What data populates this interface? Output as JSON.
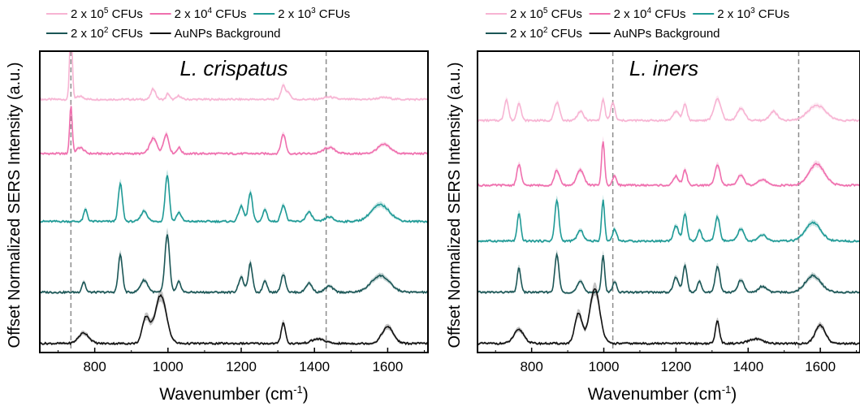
{
  "colors": {
    "s1e5": "#f7b4d3",
    "s1e4": "#ef6fae",
    "s1e3": "#1f9a96",
    "s1e2": "#1b5656",
    "bg": "#111111",
    "ref": "#8c8c8c"
  },
  "chart_data": [
    {
      "type": "line",
      "panel": "left",
      "title": "L. crispatus",
      "xlabel": "Wavenumber (cm⁻¹)",
      "ylabel": "Offset Normalized SERS Intensity (a.u.)",
      "xlim": [
        650,
        1710
      ],
      "ylim": [
        0,
        1
      ],
      "xticks": [
        800,
        1000,
        1200,
        1400,
        1600
      ],
      "reference_lines": [
        735,
        1432
      ],
      "legend": {
        "placement": "top",
        "entries": [
          "2 x 10⁵ CFUs",
          "2 x 10⁴ CFUs",
          "2 x 10³ CFUs",
          "2 x 10² CFUs",
          "AuNPs Background"
        ]
      },
      "series": [
        {
          "name": "2 x 10⁵ CFUs",
          "color_key": "s1e5",
          "offset": 0.84,
          "peaks": [
            [
              735,
              0.255,
              5
            ],
            [
              760,
              0.01,
              14
            ],
            [
              960,
              0.035,
              9
            ],
            [
              1000,
              0.02,
              6
            ],
            [
              1030,
              0.012,
              8
            ],
            [
              1315,
              0.045,
              9
            ],
            [
              1330,
              0.02,
              8
            ],
            [
              1440,
              0.008,
              20
            ],
            [
              1590,
              0.006,
              25
            ]
          ]
        },
        {
          "name": "2 x 10⁴ CFUs",
          "color_key": "s1e4",
          "offset": 0.66,
          "peaks": [
            [
              735,
              0.16,
              5
            ],
            [
              760,
              0.02,
              14
            ],
            [
              960,
              0.05,
              14
            ],
            [
              995,
              0.065,
              10
            ],
            [
              1030,
              0.02,
              8
            ],
            [
              1315,
              0.065,
              9
            ],
            [
              1440,
              0.02,
              22
            ],
            [
              1590,
              0.03,
              25
            ]
          ]
        },
        {
          "name": "2 x 10³ CFUs",
          "color_key": "s1e3",
          "offset": 0.435,
          "peaks": [
            [
              775,
              0.04,
              7
            ],
            [
              870,
              0.125,
              8
            ],
            [
              935,
              0.035,
              12
            ],
            [
              998,
              0.155,
              8
            ],
            [
              1030,
              0.03,
              9
            ],
            [
              1200,
              0.05,
              10
            ],
            [
              1225,
              0.095,
              8
            ],
            [
              1265,
              0.04,
              8
            ],
            [
              1315,
              0.055,
              9
            ],
            [
              1385,
              0.03,
              12
            ],
            [
              1440,
              0.015,
              15
            ],
            [
              1580,
              0.055,
              35
            ]
          ]
        },
        {
          "name": "2 x 10² CFUs",
          "color_key": "s1e2",
          "offset": 0.2,
          "peaks": [
            [
              770,
              0.035,
              7
            ],
            [
              870,
              0.125,
              8
            ],
            [
              935,
              0.04,
              14
            ],
            [
              998,
              0.19,
              9
            ],
            [
              1030,
              0.035,
              8
            ],
            [
              1200,
              0.05,
              10
            ],
            [
              1225,
              0.095,
              8
            ],
            [
              1265,
              0.04,
              8
            ],
            [
              1315,
              0.06,
              9
            ],
            [
              1385,
              0.03,
              12
            ],
            [
              1440,
              0.02,
              15
            ],
            [
              1580,
              0.055,
              35
            ]
          ]
        },
        {
          "name": "AuNPs Background",
          "color_key": "bg",
          "offset": 0.03,
          "peaks": [
            [
              770,
              0.035,
              20
            ],
            [
              940,
              0.085,
              14
            ],
            [
              980,
              0.16,
              22
            ],
            [
              1315,
              0.07,
              8
            ],
            [
              1410,
              0.015,
              25
            ],
            [
              1600,
              0.055,
              22
            ]
          ]
        }
      ]
    },
    {
      "type": "line",
      "panel": "right",
      "title": "L. iners",
      "xlabel": "Wavenumber (cm⁻¹)",
      "ylabel": "Offset Normalized SERS Intensity (a.u.)",
      "xlim": [
        650,
        1710
      ],
      "ylim": [
        0,
        1
      ],
      "xticks": [
        800,
        1000,
        1200,
        1400,
        1600
      ],
      "reference_lines": [
        1025,
        1540
      ],
      "legend": {
        "placement": "top",
        "entries": [
          "2 x 10⁵ CFUs",
          "2 x 10⁴ CFUs",
          "2 x 10³ CFUs",
          "2 x 10² CFUs",
          "AuNPs Background"
        ]
      },
      "series": [
        {
          "name": "2 x 10⁵ CFUs",
          "color_key": "s1e5",
          "offset": 0.77,
          "peaks": [
            [
              730,
              0.07,
              8
            ],
            [
              765,
              0.06,
              8
            ],
            [
              870,
              0.06,
              10
            ],
            [
              935,
              0.03,
              12
            ],
            [
              998,
              0.07,
              7
            ],
            [
              1025,
              0.06,
              8
            ],
            [
              1200,
              0.03,
              12
            ],
            [
              1225,
              0.055,
              8
            ],
            [
              1315,
              0.07,
              14
            ],
            [
              1380,
              0.04,
              15
            ],
            [
              1470,
              0.03,
              15
            ],
            [
              1590,
              0.05,
              35
            ]
          ]
        },
        {
          "name": "2 x 10⁴ CFUs",
          "color_key": "s1e4",
          "offset": 0.555,
          "peaks": [
            [
              765,
              0.07,
              8
            ],
            [
              870,
              0.05,
              10
            ],
            [
              935,
              0.05,
              14
            ],
            [
              998,
              0.145,
              6
            ],
            [
              1030,
              0.03,
              8
            ],
            [
              1200,
              0.03,
              10
            ],
            [
              1225,
              0.05,
              8
            ],
            [
              1315,
              0.07,
              10
            ],
            [
              1380,
              0.035,
              12
            ],
            [
              1440,
              0.02,
              15
            ],
            [
              1590,
              0.07,
              30
            ]
          ]
        },
        {
          "name": "2 x 10³ CFUs",
          "color_key": "s1e3",
          "offset": 0.37,
          "peaks": [
            [
              765,
              0.09,
              7
            ],
            [
              870,
              0.135,
              8
            ],
            [
              935,
              0.035,
              12
            ],
            [
              998,
              0.135,
              6
            ],
            [
              1030,
              0.04,
              8
            ],
            [
              1200,
              0.05,
              10
            ],
            [
              1225,
              0.09,
              8
            ],
            [
              1265,
              0.035,
              8
            ],
            [
              1315,
              0.08,
              9
            ],
            [
              1380,
              0.04,
              12
            ],
            [
              1440,
              0.02,
              15
            ],
            [
              1580,
              0.06,
              30
            ]
          ]
        },
        {
          "name": "2 x 10² CFUs",
          "color_key": "s1e2",
          "offset": 0.2,
          "peaks": [
            [
              765,
              0.08,
              7
            ],
            [
              870,
              0.125,
              8
            ],
            [
              935,
              0.035,
              12
            ],
            [
              998,
              0.125,
              6
            ],
            [
              1030,
              0.035,
              8
            ],
            [
              1200,
              0.05,
              10
            ],
            [
              1225,
              0.09,
              8
            ],
            [
              1265,
              0.035,
              8
            ],
            [
              1315,
              0.085,
              9
            ],
            [
              1380,
              0.04,
              12
            ],
            [
              1440,
              0.02,
              15
            ],
            [
              1580,
              0.055,
              30
            ]
          ]
        },
        {
          "name": "AuNPs Background",
          "color_key": "bg",
          "offset": 0.03,
          "peaks": [
            [
              765,
              0.045,
              20
            ],
            [
              930,
              0.1,
              14
            ],
            [
              975,
              0.18,
              20
            ],
            [
              1315,
              0.075,
              8
            ],
            [
              1420,
              0.015,
              25
            ],
            [
              1600,
              0.06,
              20
            ]
          ]
        }
      ]
    }
  ],
  "legend_text": {
    "left_row1": [
      {
        "pre": "2 x 10",
        "sup": "5",
        "post": " CFUs"
      },
      {
        "pre": "2 x 10",
        "sup": "4",
        "post": " CFUs"
      },
      {
        "pre": "2 x 10",
        "sup": "3",
        "post": " CFUs"
      }
    ],
    "left_row2": [
      {
        "pre": "2 x 10",
        "sup": "2",
        "post": " CFUs"
      },
      {
        "pre": "AuNPs Background",
        "sup": "",
        "post": ""
      }
    ]
  },
  "axis_text": {
    "ylabel": "Offset Normalized SERS Intensity (a.u.)",
    "xlabel_pre": "Wavenumber (cm",
    "xlabel_sup": "-1",
    "xlabel_post": ")"
  }
}
